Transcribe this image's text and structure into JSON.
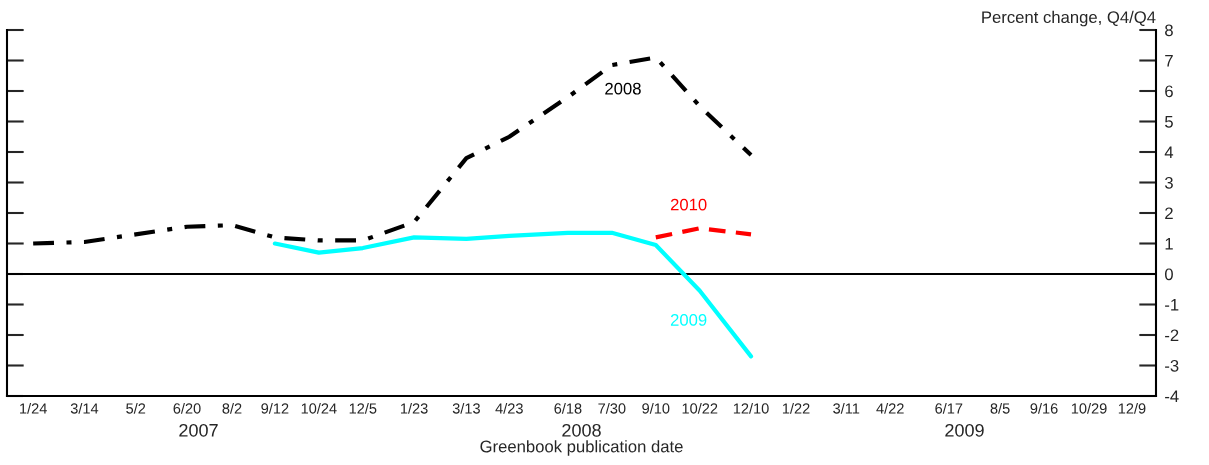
{
  "chart_data": {
    "type": "line",
    "xlabel": "Greenbook publication date",
    "ylabel": "Percent change, Q4/Q4",
    "x": [
      "2007-01-24",
      "2007-03-14",
      "2007-05-02",
      "2007-06-20",
      "2007-08-02",
      "2007-09-12",
      "2007-10-24",
      "2007-12-05",
      "2008-01-23",
      "2008-03-13",
      "2008-04-23",
      "2008-06-18",
      "2008-07-30",
      "2008-09-10",
      "2008-10-22",
      "2008-12-10"
    ],
    "series": [
      {
        "name": "2008",
        "color": "#000000",
        "line_style": "dashdot",
        "values": [
          1.0,
          1.05,
          1.3,
          1.55,
          1.6,
          1.2,
          1.1,
          1.1,
          1.7,
          3.8,
          4.5,
          5.8,
          6.85,
          7.1,
          5.5,
          3.9
        ]
      },
      {
        "name": "2009",
        "color": "#00ffff",
        "line_style": "solid",
        "values": [
          null,
          null,
          null,
          null,
          null,
          1.0,
          0.7,
          0.85,
          1.2,
          1.15,
          1.25,
          1.35,
          1.35,
          0.95,
          -0.55,
          -2.7
        ]
      },
      {
        "name": "2010",
        "color": "#ff0000",
        "line_style": "dashed",
        "values": [
          null,
          null,
          null,
          null,
          null,
          null,
          null,
          null,
          null,
          null,
          null,
          null,
          null,
          1.2,
          1.5,
          1.3
        ]
      }
    ],
    "xlim": [
      "2006-12-30",
      "2010-01-01"
    ],
    "xticks": [
      {
        "value": "2007-01-24",
        "label": "1/24"
      },
      {
        "value": "2007-03-14",
        "label": "3/14"
      },
      {
        "value": "2007-05-02",
        "label": "5/2"
      },
      {
        "value": "2007-06-20",
        "label": "6/20"
      },
      {
        "value": "2007-08-02",
        "label": "8/2"
      },
      {
        "value": "2007-09-12",
        "label": "9/12"
      },
      {
        "value": "2007-10-24",
        "label": "10/24"
      },
      {
        "value": "2007-12-05",
        "label": "12/5"
      },
      {
        "value": "2008-01-23",
        "label": "1/23"
      },
      {
        "value": "2008-03-13",
        "label": "3/13"
      },
      {
        "value": "2008-04-23",
        "label": "4/23"
      },
      {
        "value": "2008-06-18",
        "label": "6/18"
      },
      {
        "value": "2008-07-30",
        "label": "7/30"
      },
      {
        "value": "2008-09-10",
        "label": "9/10"
      },
      {
        "value": "2008-10-22",
        "label": "10/22"
      },
      {
        "value": "2008-12-10",
        "label": "12/10"
      },
      {
        "value": "2009-01-22",
        "label": "1/22"
      },
      {
        "value": "2009-03-11",
        "label": "3/11"
      },
      {
        "value": "2009-04-22",
        "label": "4/22"
      },
      {
        "value": "2009-06-17",
        "label": "6/17"
      },
      {
        "value": "2009-08-05",
        "label": "8/5"
      },
      {
        "value": "2009-09-16",
        "label": "9/16"
      },
      {
        "value": "2009-10-29",
        "label": "10/29"
      },
      {
        "value": "2009-12-09",
        "label": "12/9"
      }
    ],
    "ylim": [
      -4,
      8
    ],
    "yticks": [
      -4,
      -3,
      -2,
      -1,
      0,
      1,
      2,
      3,
      4,
      5,
      6,
      7,
      8
    ],
    "ref_lines": [
      {
        "axis": "y",
        "value": 0,
        "color": "#000000",
        "line_style": "solid"
      }
    ],
    "annotations": [
      "2007",
      "2008",
      "2009"
    ],
    "grid": false,
    "legend": false
  }
}
